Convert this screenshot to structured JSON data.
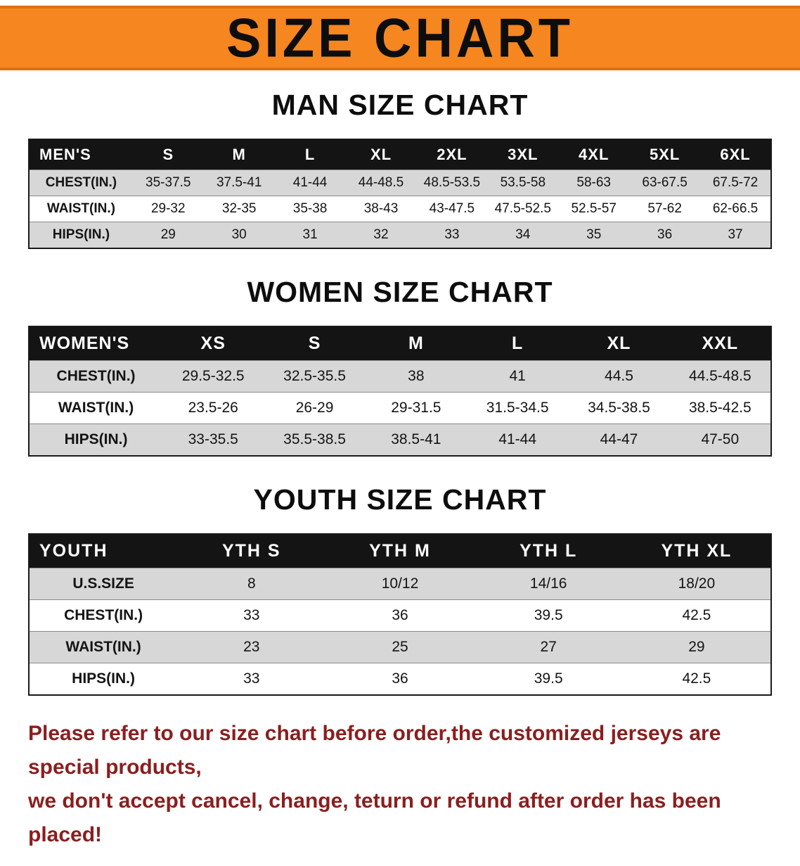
{
  "banner": {
    "title": "SIZE CHART",
    "bg_color": "#f6861f"
  },
  "sections": [
    {
      "heading": "MAN SIZE CHART",
      "table": {
        "header": [
          "MEN'S",
          "S",
          "M",
          "L",
          "XL",
          "2XL",
          "3XL",
          "4XL",
          "5XL",
          "6XL"
        ],
        "rows": [
          [
            "CHEST(IN.)",
            "35-37.5",
            "37.5-41",
            "41-44",
            "44-48.5",
            "48.5-53.5",
            "53.5-58",
            "58-63",
            "63-67.5",
            "67.5-72"
          ],
          [
            "WAIST(IN.)",
            "29-32",
            "32-35",
            "35-38",
            "38-43",
            "43-47.5",
            "47.5-52.5",
            "52.5-57",
            "57-62",
            "62-66.5"
          ],
          [
            "HIPS(IN.)",
            "29",
            "30",
            "31",
            "32",
            "33",
            "34",
            "35",
            "36",
            "37"
          ]
        ]
      }
    },
    {
      "heading": "WOMEN SIZE CHART",
      "table": {
        "header": [
          "WOMEN'S",
          "XS",
          "S",
          "M",
          "L",
          "XL",
          "XXL"
        ],
        "rows": [
          [
            "CHEST(IN.)",
            "29.5-32.5",
            "32.5-35.5",
            "38",
            "41",
            "44.5",
            "44.5-48.5"
          ],
          [
            "WAIST(IN.)",
            "23.5-26",
            "26-29",
            "29-31.5",
            "31.5-34.5",
            "34.5-38.5",
            "38.5-42.5"
          ],
          [
            "HIPS(IN.)",
            "33-35.5",
            "35.5-38.5",
            "38.5-41",
            "41-44",
            "44-47",
            "47-50"
          ]
        ]
      }
    },
    {
      "heading": "YOUTH SIZE CHART",
      "table": {
        "header": [
          "YOUTH",
          "YTH S",
          "YTH M",
          "YTH L",
          "YTH XL"
        ],
        "rows": [
          [
            "U.S.SIZE",
            "8",
            "10/12",
            "14/16",
            "18/20"
          ],
          [
            "CHEST(IN.)",
            "33",
            "36",
            "39.5",
            "42.5"
          ],
          [
            "WAIST(IN.)",
            "23",
            "25",
            "27",
            "29"
          ],
          [
            "HIPS(IN.)",
            "33",
            "36",
            "39.5",
            "42.5"
          ]
        ]
      }
    }
  ],
  "footer": {
    "line1": "Please refer to our size chart before order,the customized jerseys are special products,",
    "line2": "we don't accept cancel, change, teturn or refund after order has been placed!",
    "color": "#8b1e1e"
  }
}
